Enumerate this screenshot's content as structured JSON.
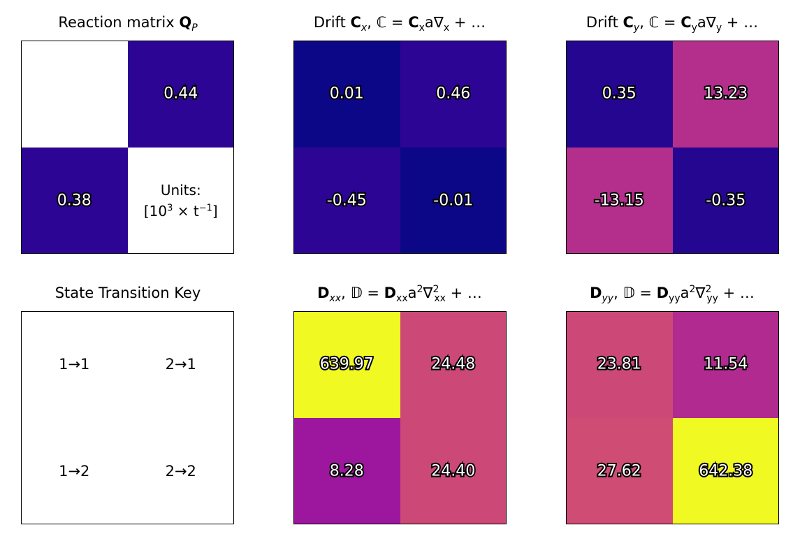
{
  "titles": {
    "qp": {
      "pre": "Reaction matrix ",
      "bold": "Q",
      "sub": "P"
    },
    "cx": {
      "pre": "Drift ",
      "bold": "C",
      "sub": "x",
      "rest_a": ", ℂ = ",
      "bold2": "C",
      "rest_b": "x",
      "rest_c": "a∇",
      "rest_d": "x",
      "rest_e": " + …"
    },
    "cy": {
      "pre": "Drift ",
      "bold": "C",
      "sub": "y",
      "rest_a": ", ℂ = ",
      "bold2": "C",
      "rest_b": "y",
      "rest_c": "a∇",
      "rest_d": "y",
      "rest_e": " + …"
    },
    "key": "State Transition Key",
    "dxx": {
      "bold": "D",
      "sub": "xx",
      "rest_a": ", 𝔻 = ",
      "bold2": "D",
      "rest_b": "xx",
      "rest_c": "a",
      "sup1": "2",
      "rest_d": "∇",
      "sup2": "2",
      "sub2": "xx",
      "rest_e": " + …"
    },
    "dyy": {
      "bold": "D",
      "sub": "yy",
      "rest_a": ", 𝔻 = ",
      "bold2": "D",
      "rest_b": "yy",
      "rest_c": "a",
      "sup1": "2",
      "rest_d": "∇",
      "sup2": "2",
      "sub2": "yy",
      "rest_e": " + …"
    }
  },
  "units": {
    "line1": "Units:",
    "line2_a": "[10",
    "line2_sup": "3",
    "line2_b": " × t",
    "line2_sup2": "−1",
    "line2_c": "]"
  },
  "chart_data": [
    {
      "type": "heatmap",
      "name": "qp",
      "rows": 2,
      "cols": 2,
      "labels": [
        [
          "",
          "0.44"
        ],
        [
          "0.38",
          ""
        ]
      ],
      "colors": [
        [
          "#ffffff",
          "#2c0594"
        ],
        [
          "#2c0594",
          "#ffffff"
        ]
      ]
    },
    {
      "type": "heatmap",
      "name": "cx",
      "rows": 2,
      "cols": 2,
      "labels": [
        [
          "0.01",
          "0.46"
        ],
        [
          "-0.45",
          "-0.01"
        ]
      ],
      "colors": [
        [
          "#0c0787",
          "#2d0594"
        ],
        [
          "#2d0594",
          "#0c0787"
        ]
      ]
    },
    {
      "type": "heatmap",
      "name": "cy",
      "rows": 2,
      "cols": 2,
      "labels": [
        [
          "0.35",
          "13.23"
        ],
        [
          "-13.15",
          "-0.35"
        ]
      ],
      "colors": [
        [
          "#240691",
          "#b42e8c"
        ],
        [
          "#b42e8c",
          "#240691"
        ]
      ]
    },
    {
      "type": "table",
      "name": "key",
      "rows": 2,
      "cols": 2,
      "labels": [
        [
          "1→1",
          "2→1"
        ],
        [
          "1→2",
          "2→2"
        ]
      ]
    },
    {
      "type": "heatmap",
      "name": "dxx",
      "rows": 2,
      "cols": 2,
      "labels": [
        [
          "639.97",
          "24.48"
        ],
        [
          "8.28",
          "24.40"
        ]
      ],
      "colors": [
        [
          "#f0f921",
          "#cc4977"
        ],
        [
          "#9c179e",
          "#cc4977"
        ]
      ]
    },
    {
      "type": "heatmap",
      "name": "dyy",
      "rows": 2,
      "cols": 2,
      "labels": [
        [
          "23.81",
          "11.54"
        ],
        [
          "27.62",
          "642.38"
        ]
      ],
      "colors": [
        [
          "#cc4977",
          "#b02a8f"
        ],
        [
          "#cf4c74",
          "#f0f921"
        ]
      ]
    }
  ]
}
